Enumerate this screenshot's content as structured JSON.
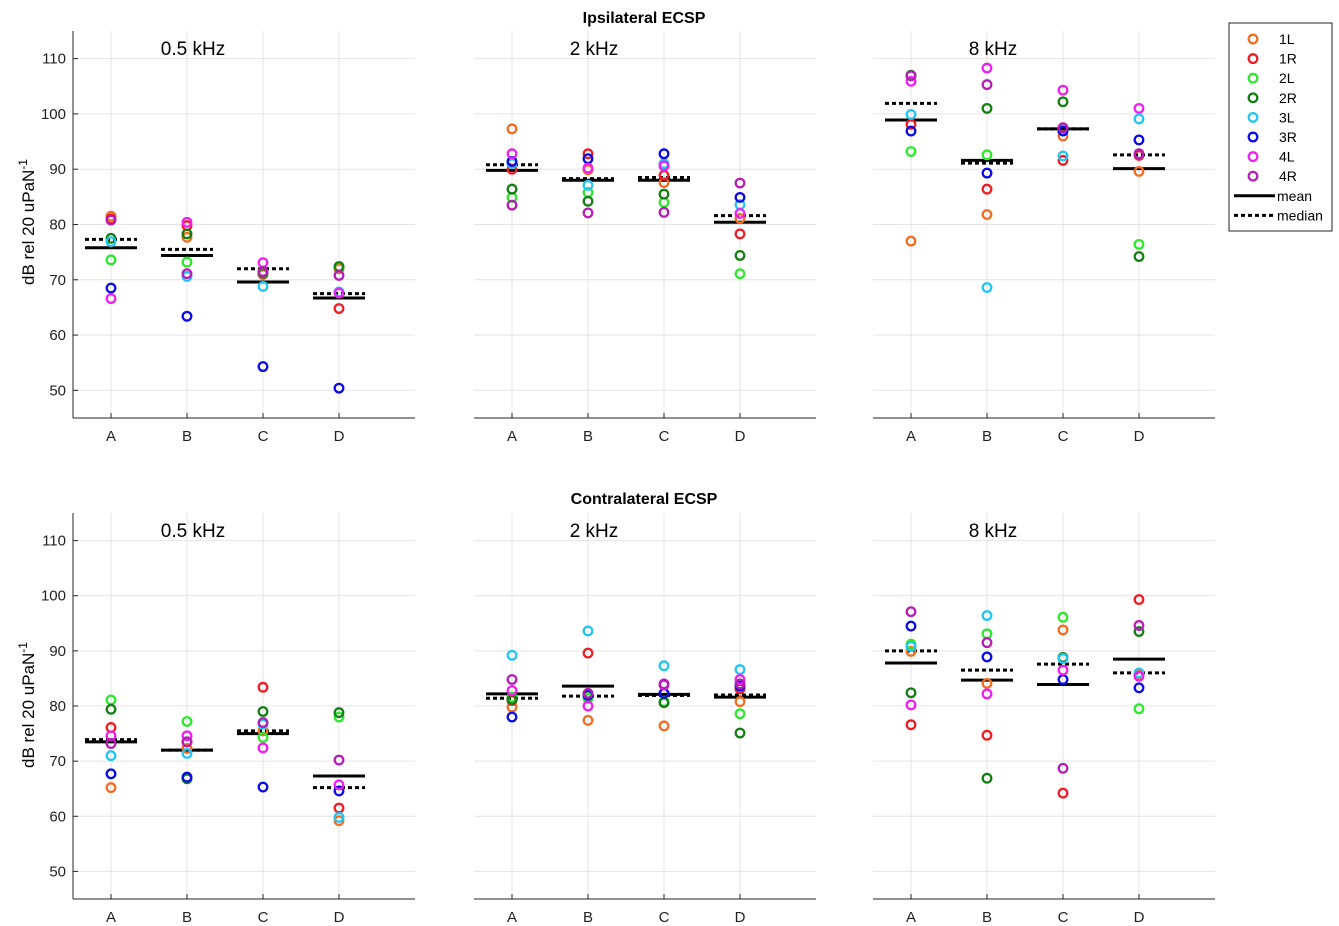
{
  "figure": {
    "rows": [
      {
        "title": "Ipsilateral ECSP",
        "ylabel": "dB rel 20 uPaN",
        "ylabel_sup": "-1"
      },
      {
        "title": "Contralateral ECSP",
        "ylabel": "dB rel 20 uPaN",
        "ylabel_sup": "-1"
      }
    ]
  },
  "legend": {
    "series": [
      {
        "name": "1L",
        "color": "#f26d21"
      },
      {
        "name": "1R",
        "color": "#ee1c25"
      },
      {
        "name": "2L",
        "color": "#2ee82e"
      },
      {
        "name": "2R",
        "color": "#137f13"
      },
      {
        "name": "3L",
        "color": "#22c5f0"
      },
      {
        "name": "3R",
        "color": "#0a0ae6"
      },
      {
        "name": "4L",
        "color": "#f01ef0"
      },
      {
        "name": "4R",
        "color": "#b41eb4"
      }
    ],
    "mean_label": "mean",
    "median_label": "median"
  },
  "chart_data": [
    {
      "type": "scatter",
      "row": "Ipsilateral ECSP",
      "title": "0.5 kHz",
      "categories": [
        "A",
        "B",
        "C",
        "D"
      ],
      "ylim": [
        45,
        115
      ],
      "yticks": [
        50,
        60,
        70,
        80,
        90,
        100,
        110
      ],
      "grid": true,
      "series": [
        {
          "name": "1L",
          "values": [
            81.5,
            77.7,
            71.4,
            72.0
          ]
        },
        {
          "name": "1R",
          "values": [
            81.0,
            79.8,
            71.0,
            64.8
          ]
        },
        {
          "name": "2L",
          "values": [
            73.6,
            73.2,
            71.2,
            72.3
          ]
        },
        {
          "name": "2R",
          "values": [
            77.5,
            78.3,
            71.3,
            72.4
          ]
        },
        {
          "name": "3L",
          "values": [
            76.9,
            70.6,
            68.8,
            67.8
          ]
        },
        {
          "name": "3R",
          "values": [
            68.5,
            63.4,
            54.3,
            50.4
          ]
        },
        {
          "name": "4L",
          "values": [
            66.6,
            80.4,
            73.1,
            67.6
          ]
        },
        {
          "name": "4R",
          "values": [
            80.8,
            71.1,
            71.5,
            70.8
          ]
        }
      ],
      "mean": [
        75.8,
        74.4,
        69.6,
        66.7
      ],
      "median": [
        77.3,
        75.5,
        72.0,
        67.5
      ]
    },
    {
      "type": "scatter",
      "row": "Ipsilateral ECSP",
      "title": "2 kHz",
      "categories": [
        "A",
        "B",
        "C",
        "D"
      ],
      "ylim": [
        45,
        115
      ],
      "yticks": [
        50,
        60,
        70,
        80,
        90,
        100,
        110
      ],
      "grid": true,
      "series": [
        {
          "name": "1L",
          "values": [
            97.3,
            89.9,
            87.6,
            81.1
          ]
        },
        {
          "name": "1R",
          "values": [
            90.0,
            92.8,
            88.9,
            78.3
          ]
        },
        {
          "name": "2L",
          "values": [
            84.9,
            85.8,
            84.0,
            71.1
          ]
        },
        {
          "name": "2R",
          "values": [
            86.4,
            84.2,
            85.5,
            74.4
          ]
        },
        {
          "name": "3L",
          "values": [
            91.0,
            87.1,
            91.0,
            83.6
          ]
        },
        {
          "name": "3R",
          "values": [
            91.4,
            91.9,
            92.8,
            84.9
          ]
        },
        {
          "name": "4L",
          "values": [
            92.8,
            90.2,
            90.6,
            82.0
          ]
        },
        {
          "name": "4R",
          "values": [
            83.5,
            82.1,
            82.2,
            87.5
          ]
        }
      ],
      "mean": [
        89.8,
        88.0,
        88.0,
        80.4
      ],
      "median": [
        90.8,
        88.3,
        88.5,
        81.6
      ]
    },
    {
      "type": "scatter",
      "row": "Ipsilateral ECSP",
      "title": "8 kHz",
      "categories": [
        "A",
        "B",
        "C",
        "D"
      ],
      "ylim": [
        45,
        115
      ],
      "yticks": [
        50,
        60,
        70,
        80,
        90,
        100,
        110
      ],
      "grid": true,
      "series": [
        {
          "name": "1L",
          "values": [
            77.0,
            81.8,
            96.0,
            89.6
          ]
        },
        {
          "name": "1R",
          "values": [
            98.1,
            86.4,
            91.6,
            92.5
          ]
        },
        {
          "name": "2L",
          "values": [
            93.2,
            92.6,
            97.2,
            76.4
          ]
        },
        {
          "name": "2R",
          "values": [
            107.0,
            101.0,
            102.2,
            74.2
          ]
        },
        {
          "name": "3L",
          "values": [
            99.9,
            68.6,
            92.4,
            99.1
          ]
        },
        {
          "name": "3R",
          "values": [
            96.9,
            89.3,
            96.9,
            95.3
          ]
        },
        {
          "name": "4L",
          "values": [
            105.9,
            108.3,
            104.3,
            101.0
          ]
        },
        {
          "name": "4R",
          "values": [
            106.9,
            105.3,
            97.5,
            92.8
          ]
        }
      ],
      "mean": [
        98.9,
        91.6,
        97.3,
        90.1
      ],
      "median": [
        101.9,
        91.1,
        97.3,
        92.6
      ]
    },
    {
      "type": "scatter",
      "row": "Contralateral ECSP",
      "title": "0.5 kHz",
      "categories": [
        "A",
        "B",
        "C",
        "D"
      ],
      "ylim": [
        45,
        115
      ],
      "yticks": [
        50,
        60,
        70,
        80,
        90,
        100,
        110
      ],
      "grid": true,
      "series": [
        {
          "name": "1L",
          "values": [
            65.2,
            72.3,
            75.5,
            59.2
          ]
        },
        {
          "name": "1R",
          "values": [
            76.1,
            73.5,
            83.4,
            61.5
          ]
        },
        {
          "name": "2L",
          "values": [
            81.1,
            77.2,
            74.3,
            78.0
          ]
        },
        {
          "name": "2R",
          "values": [
            79.4,
            66.8,
            79.0,
            78.8
          ]
        },
        {
          "name": "3L",
          "values": [
            71.0,
            71.4,
            76.7,
            59.8
          ]
        },
        {
          "name": "3R",
          "values": [
            67.7,
            67.1,
            65.3,
            64.6
          ]
        },
        {
          "name": "4L",
          "values": [
            74.6,
            74.6,
            72.4,
            65.7
          ]
        },
        {
          "name": "4R",
          "values": [
            73.2,
            73.5,
            77.0,
            70.2
          ]
        }
      ],
      "mean": [
        73.5,
        72.0,
        75.0,
        67.3
      ],
      "median": [
        73.9,
        72.0,
        75.5,
        65.2
      ]
    },
    {
      "type": "scatter",
      "row": "Contralateral ECSP",
      "title": "2 kHz",
      "categories": [
        "A",
        "B",
        "C",
        "D"
      ],
      "ylim": [
        45,
        115
      ],
      "yticks": [
        50,
        60,
        70,
        80,
        90,
        100,
        110
      ],
      "grid": true,
      "series": [
        {
          "name": "1L",
          "values": [
            79.8,
            77.4,
            76.4,
            80.8
          ]
        },
        {
          "name": "1R",
          "values": [
            81.0,
            89.6,
            82.3,
            83.1
          ]
        },
        {
          "name": "2L",
          "values": [
            81.6,
            81.4,
            80.8,
            78.6
          ]
        },
        {
          "name": "2R",
          "values": [
            81.2,
            81.9,
            80.6,
            75.1
          ]
        },
        {
          "name": "3L",
          "values": [
            89.2,
            93.6,
            87.3,
            86.6
          ]
        },
        {
          "name": "3R",
          "values": [
            78.0,
            82.0,
            82.3,
            83.6
          ]
        },
        {
          "name": "4L",
          "values": [
            82.8,
            80.0,
            83.8,
            84.8
          ]
        },
        {
          "name": "4R",
          "values": [
            84.8,
            82.3,
            84.0,
            84.0
          ]
        }
      ],
      "mean": [
        82.2,
        83.6,
        82.1,
        81.6
      ],
      "median": [
        81.4,
        81.8,
        81.9,
        82.0
      ]
    },
    {
      "type": "scatter",
      "row": "Contralateral ECSP",
      "title": "8 kHz",
      "categories": [
        "A",
        "B",
        "C",
        "D"
      ],
      "ylim": [
        45,
        115
      ],
      "yticks": [
        50,
        60,
        70,
        80,
        90,
        100,
        110
      ],
      "grid": true,
      "series": [
        {
          "name": "1L",
          "values": [
            89.9,
            84.1,
            93.8,
            85.6
          ]
        },
        {
          "name": "1R",
          "values": [
            76.6,
            74.7,
            64.2,
            99.3
          ]
        },
        {
          "name": "2L",
          "values": [
            91.2,
            93.1,
            96.1,
            79.5
          ]
        },
        {
          "name": "2R",
          "values": [
            82.4,
            66.9,
            88.8,
            93.5
          ]
        },
        {
          "name": "3L",
          "values": [
            90.8,
            96.4,
            88.6,
            86.0
          ]
        },
        {
          "name": "3R",
          "values": [
            94.5,
            88.9,
            84.8,
            83.3
          ]
        },
        {
          "name": "4L",
          "values": [
            80.2,
            82.2,
            86.5,
            85.4
          ]
        },
        {
          "name": "4R",
          "values": [
            97.1,
            91.5,
            68.7,
            94.6
          ]
        }
      ],
      "mean": [
        87.8,
        84.7,
        83.9,
        88.5
      ],
      "median": [
        90.0,
        86.5,
        87.6,
        86.0
      ]
    }
  ]
}
